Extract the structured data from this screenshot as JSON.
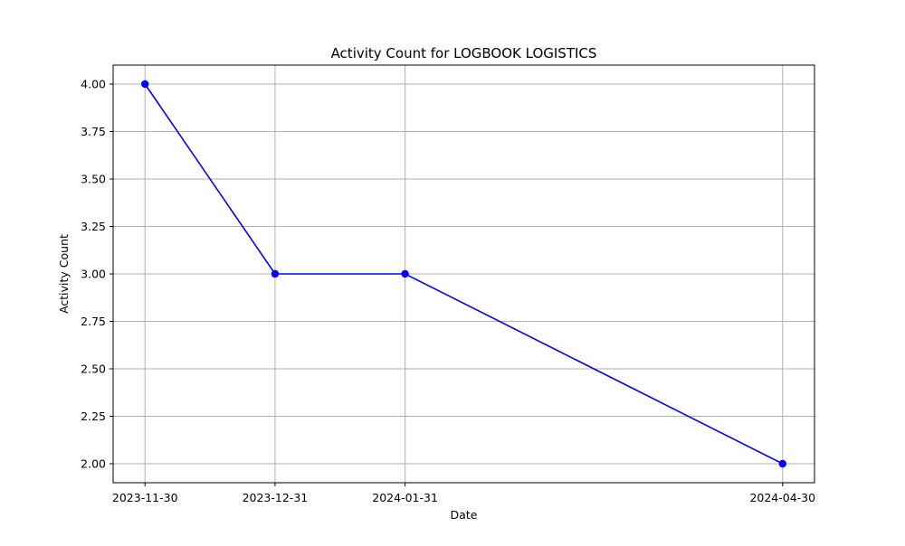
{
  "chart_data": {
    "type": "line",
    "title": "Activity Count for LOGBOOK LOGISTICS",
    "xlabel": "Date",
    "ylabel": "Activity Count",
    "x": [
      "2023-11-30",
      "2023-12-31",
      "2024-01-31",
      "2024-04-30"
    ],
    "x_ticks": [
      "2023-11-30",
      "2023-12-31",
      "2024-01-31",
      "2024-04-30"
    ],
    "series": [
      {
        "values": [
          4,
          3,
          3,
          2
        ],
        "color": "#0000ff",
        "marker": "circle"
      }
    ],
    "ylim": [
      1.9,
      4.1
    ],
    "y_ticks": [
      "2.00",
      "2.25",
      "2.50",
      "2.75",
      "3.00",
      "3.25",
      "3.50",
      "3.75",
      "4.00"
    ],
    "grid": true
  }
}
